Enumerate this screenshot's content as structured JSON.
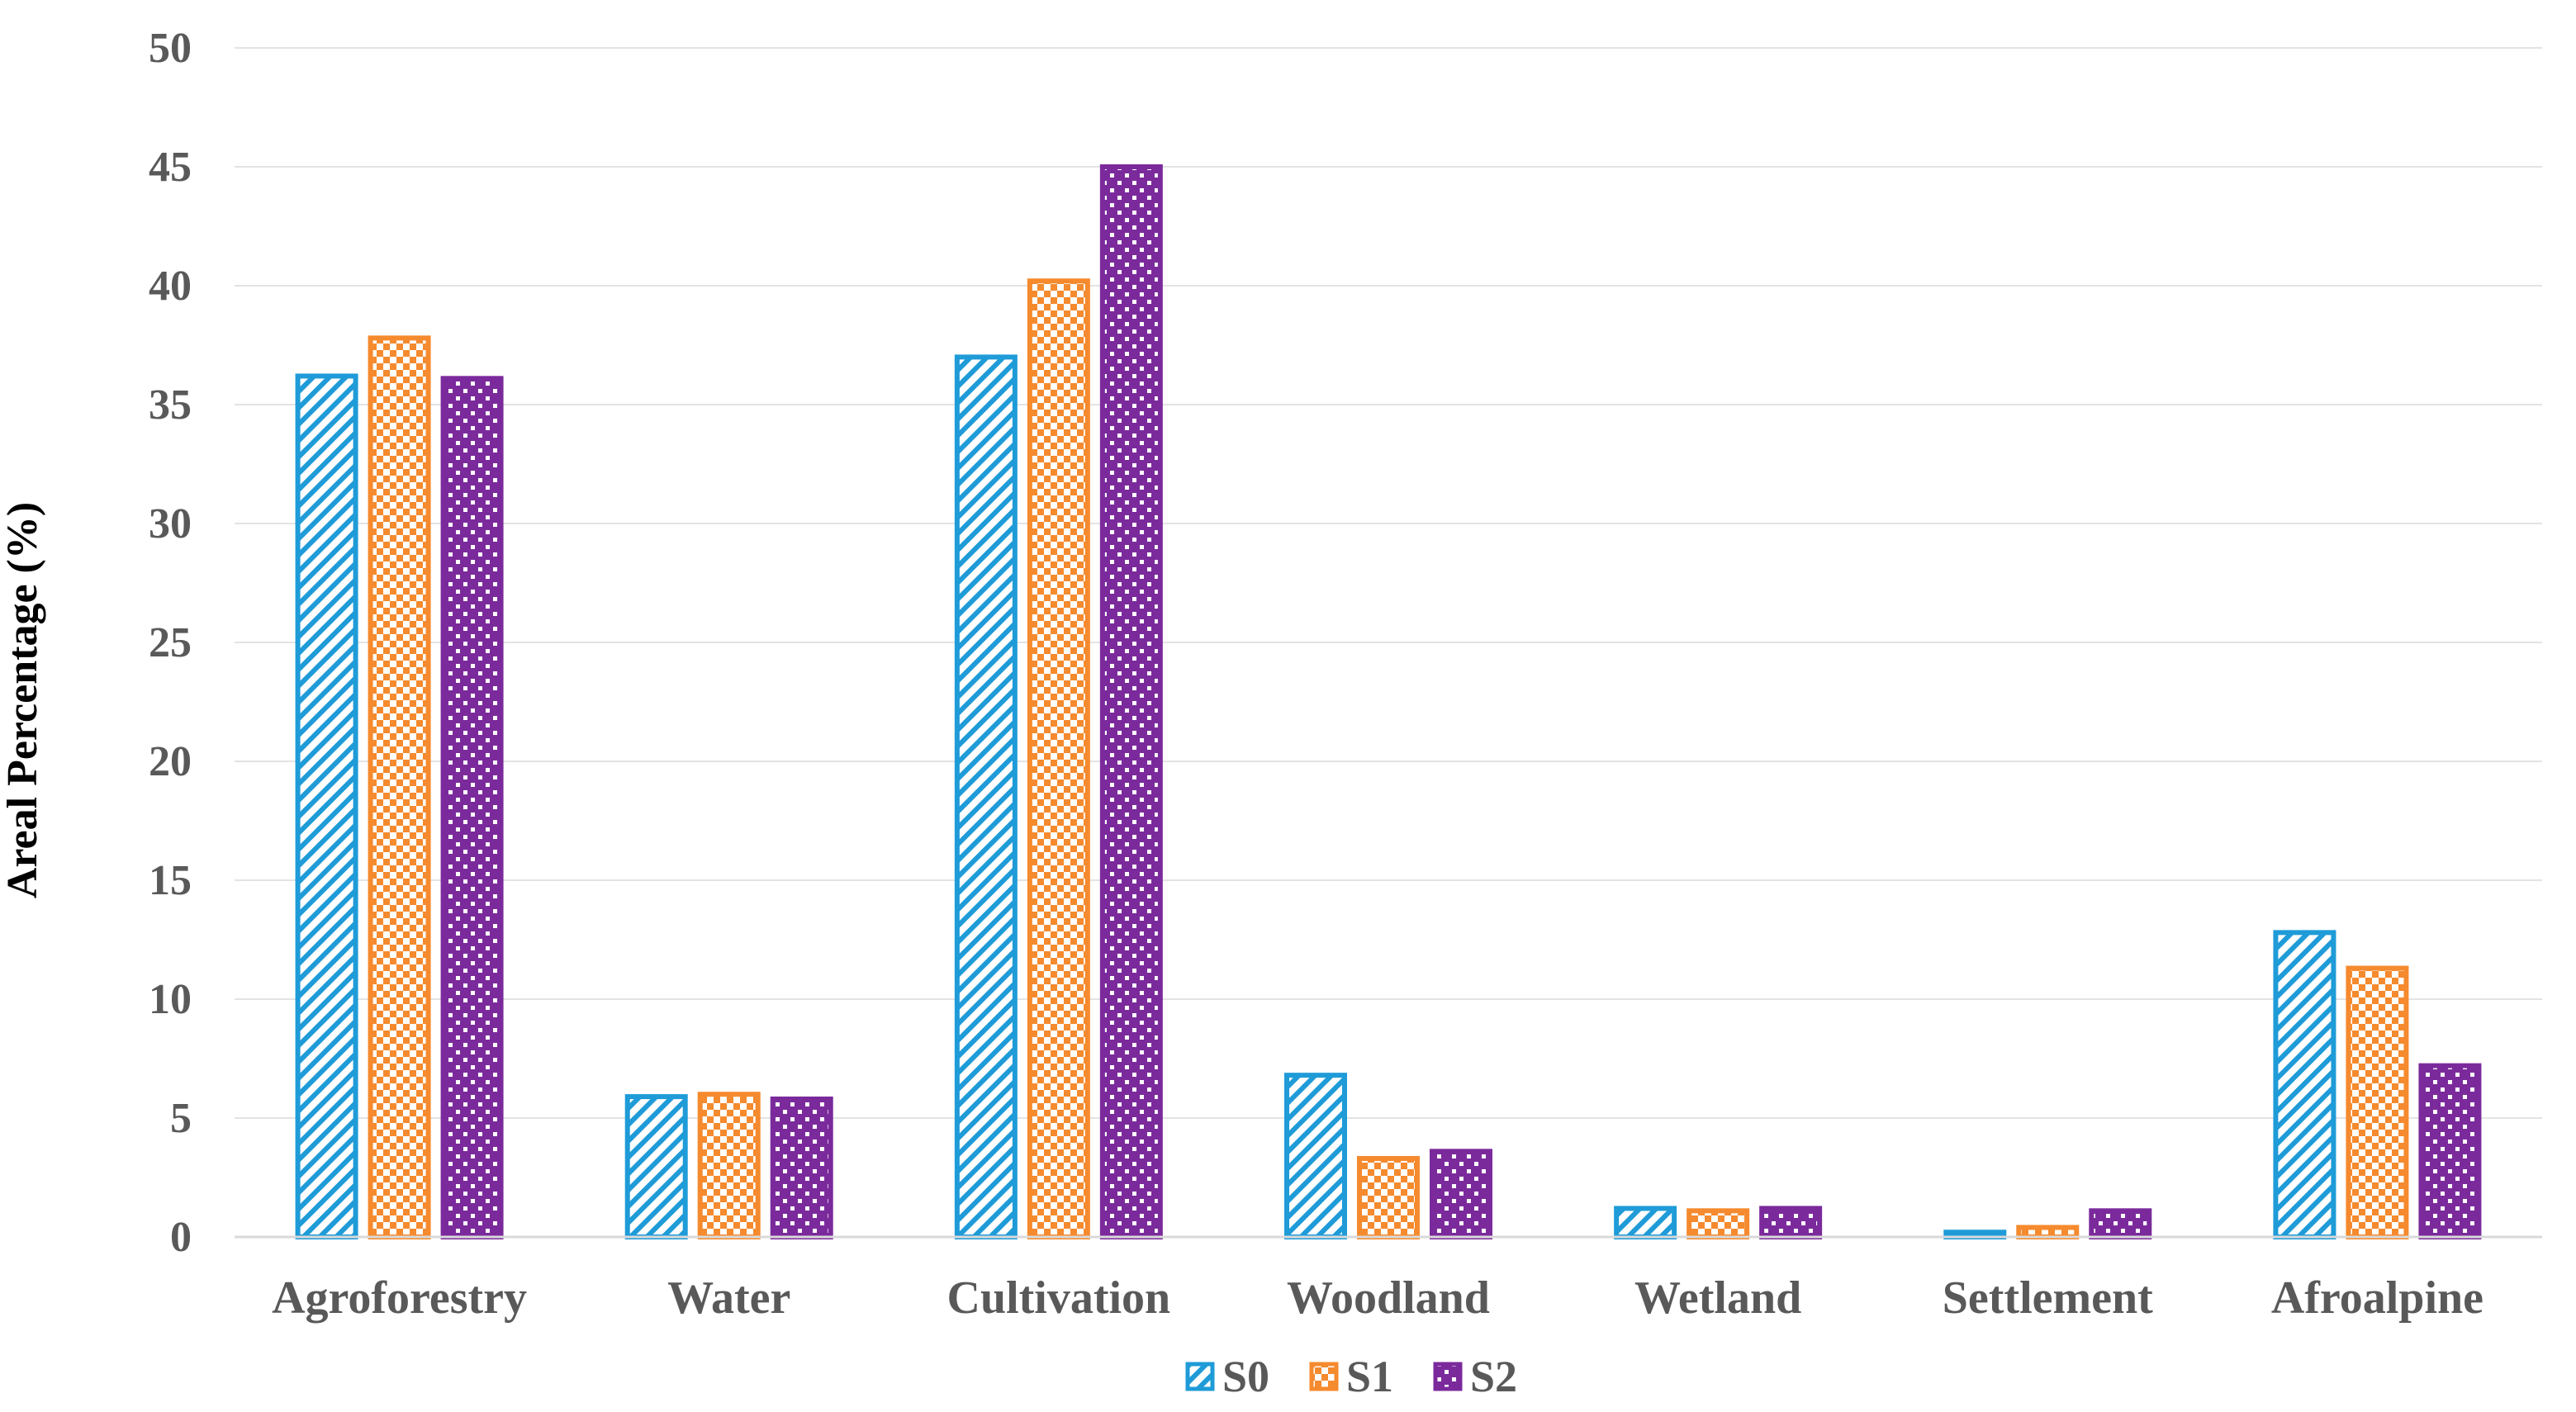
{
  "chart_data": {
    "type": "bar",
    "title": "",
    "xlabel": "",
    "ylabel": "Areal Percentage (%)",
    "ylim": [
      0,
      50
    ],
    "yticks": [
      0,
      5,
      10,
      15,
      20,
      25,
      30,
      35,
      40,
      45,
      50
    ],
    "grid": true,
    "legend_position": "bottom",
    "categories": [
      "Agroforestry",
      "Water",
      "Cultivation",
      "Woodland",
      "Wetland",
      "Settlement",
      "Afroalpine"
    ],
    "series": [
      {
        "name": "S0",
        "color": "#1f9bd8",
        "pattern": "diagonal-stripes",
        "values": [
          36.2,
          5.9,
          37.0,
          6.8,
          1.2,
          0.2,
          12.8
        ]
      },
      {
        "name": "S1",
        "color": "#f58a2e",
        "pattern": "checkerboard",
        "values": [
          37.8,
          6.0,
          40.2,
          3.3,
          1.1,
          0.4,
          11.3
        ]
      },
      {
        "name": "S2",
        "color": "#7b2a9c",
        "pattern": "dots",
        "values": [
          36.1,
          5.8,
          45.0,
          3.6,
          1.2,
          1.1,
          7.2
        ]
      }
    ]
  }
}
